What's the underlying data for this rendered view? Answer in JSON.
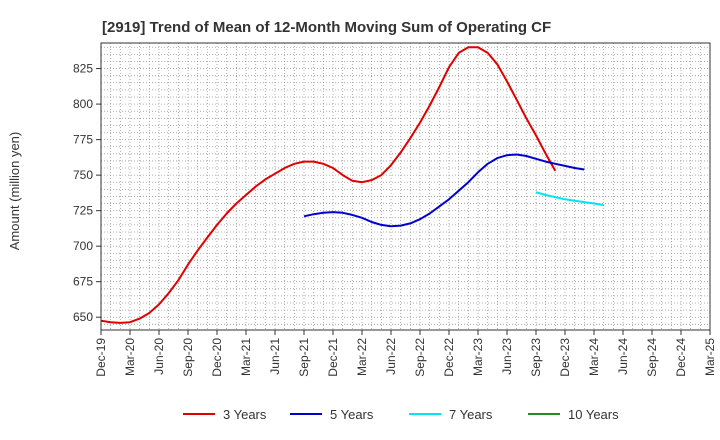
{
  "chart_data": {
    "type": "line",
    "title": "[2919]  Trend of Mean of 12-Month Moving Sum of Operating CF",
    "xlabel": "",
    "ylabel": "Amount (million yen)",
    "ylim": [
      641,
      843
    ],
    "yticks": [
      650,
      675,
      700,
      725,
      750,
      775,
      800,
      825
    ],
    "x_start": "Dec-19",
    "x_end": "Mar-25",
    "xticks": [
      "Dec-19",
      "Mar-20",
      "Jun-20",
      "Sep-20",
      "Dec-20",
      "Mar-21",
      "Jun-21",
      "Sep-21",
      "Dec-21",
      "Mar-22",
      "Jun-22",
      "Sep-22",
      "Dec-22",
      "Mar-23",
      "Jun-23",
      "Sep-23",
      "Dec-23",
      "Mar-24",
      "Jun-24",
      "Sep-24",
      "Dec-24",
      "Mar-25"
    ],
    "grid": true,
    "legend_position": "bottom",
    "series": [
      {
        "name": "3 Years",
        "color": "#e00000",
        "start": "Dec-19",
        "values": [
          647.5,
          646.5,
          646,
          646.5,
          649,
          653,
          659,
          667,
          676,
          687,
          697,
          706,
          715,
          723,
          730,
          736,
          742,
          747,
          751,
          755,
          758,
          759.5,
          759.5,
          758,
          755,
          750,
          746,
          745,
          746.5,
          750,
          757,
          766,
          776,
          787,
          799,
          812,
          826,
          836,
          840,
          840,
          836,
          828,
          816,
          803,
          790,
          778,
          765,
          753
        ]
      },
      {
        "name": "5 Years",
        "color": "#0000cc",
        "start": "Sep-21",
        "values": [
          721,
          722.5,
          723.5,
          724,
          723.5,
          722,
          720,
          717,
          715,
          714,
          714.5,
          716,
          719,
          723,
          728,
          733,
          739,
          745,
          752,
          758,
          762,
          764,
          764.5,
          763.5,
          761.5,
          759.5,
          758,
          756.5,
          755,
          754
        ]
      },
      {
        "name": "7 Years",
        "color": "#00e5ee",
        "start": "Sep-23",
        "values": [
          738,
          736,
          734.5,
          733,
          732,
          731,
          730,
          729
        ]
      },
      {
        "name": "10 Years",
        "color": "#228b22",
        "start": "Mar-24",
        "values": []
      }
    ]
  }
}
